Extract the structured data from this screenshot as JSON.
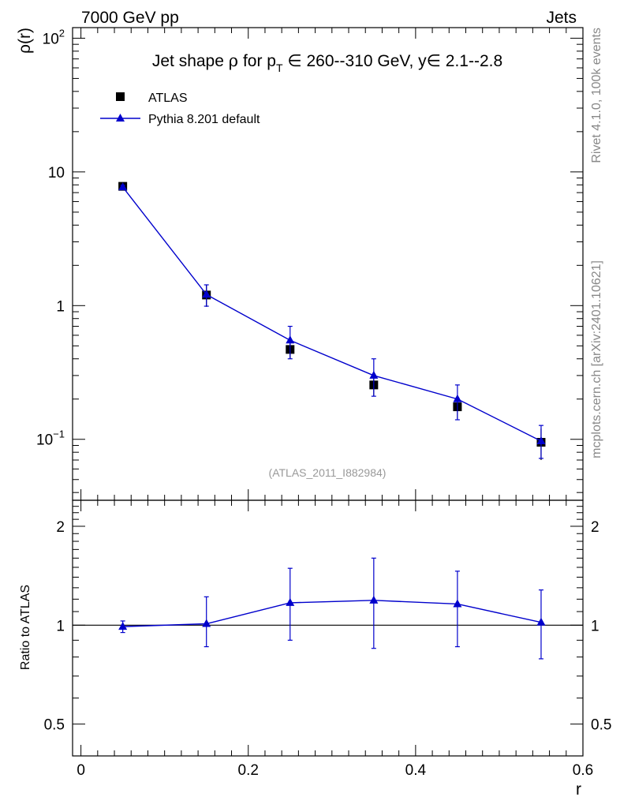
{
  "header": {
    "left_label": "7000 GeV pp",
    "right_label": "Jets"
  },
  "side_labels": {
    "rivet": "Rivet 4.1.0,  100k events",
    "mcplots": "mcplots.cern.ch [arXiv:2401.10621]"
  },
  "chart_data": [
    {
      "type": "scatter",
      "panel": "main",
      "title_parts": {
        "prefix": "Jet shape ",
        "rho": "ρ",
        "for": " for p",
        "sub": "T",
        "range": " ∈ 260--310 GeV, y∈ 2.1--2.8"
      },
      "title": "Jet shape ρ for p_T ∈ 260--310 GeV, y∈ 2.1--2.8",
      "xlabel": "r",
      "ylabel": "ρ(r)",
      "yscale": "log",
      "xlim": [
        -0.01,
        0.6
      ],
      "ylim": [
        0.035,
        120
      ],
      "ytick_labels": [
        {
          "value": 0.1,
          "base": "10",
          "exp": "−1"
        },
        {
          "value": 1,
          "base": "1",
          "exp": ""
        },
        {
          "value": 10,
          "base": "10",
          "exp": ""
        },
        {
          "value": 100,
          "base": "10",
          "exp": "2"
        }
      ],
      "watermark": "(ATLAS_2011_I882984)",
      "legend": [
        {
          "name": "ATLAS",
          "marker": "square",
          "color": "#000000"
        },
        {
          "name": "Pythia 8.201 default",
          "marker": "triangle",
          "color": "#0000cc"
        }
      ],
      "series": [
        {
          "name": "ATLAS",
          "color": "#000000",
          "x": [
            0.05,
            0.15,
            0.25,
            0.35,
            0.45,
            0.55
          ],
          "y": [
            7.8,
            1.2,
            0.47,
            0.255,
            0.175,
            0.095
          ],
          "yerr_low": [
            0.25,
            0.22,
            0.07,
            0.045,
            0.033,
            0.025
          ],
          "yerr_high": [
            0.25,
            0.22,
            0.07,
            0.045,
            0.033,
            0.025
          ]
        },
        {
          "name": "Pythia 8.201 default",
          "color": "#0000cc",
          "x": [
            0.05,
            0.15,
            0.25,
            0.35,
            0.45,
            0.55
          ],
          "y": [
            7.7,
            1.21,
            0.55,
            0.3,
            0.2,
            0.097
          ],
          "yerr_low": [
            0.25,
            0.22,
            0.15,
            0.09,
            0.06,
            0.025
          ],
          "yerr_high": [
            0.25,
            0.22,
            0.15,
            0.1,
            0.055,
            0.03
          ]
        }
      ]
    },
    {
      "type": "line",
      "panel": "ratio",
      "ylabel": "Ratio to ATLAS",
      "xlabel": "r",
      "yscale": "log",
      "xlim": [
        -0.01,
        0.6
      ],
      "ylim": [
        0.4,
        2.4
      ],
      "xtick_labels": [
        "0",
        "0.2",
        "0.4",
        "0.6"
      ],
      "xtick_values": [
        0,
        0.2,
        0.4,
        0.6
      ],
      "ytick_labels": [
        "0.5",
        "1",
        "2"
      ],
      "ytick_values": [
        0.5,
        1,
        2
      ],
      "reference_line": 1,
      "series": [
        {
          "name": "Pythia 8.201 default",
          "color": "#0000cc",
          "x": [
            0.05,
            0.15,
            0.25,
            0.35,
            0.45,
            0.55
          ],
          "y": [
            0.99,
            1.01,
            1.17,
            1.19,
            1.16,
            1.02
          ],
          "yerr_low": [
            0.04,
            0.15,
            0.27,
            0.34,
            0.3,
            0.23
          ],
          "yerr_high": [
            0.04,
            0.21,
            0.32,
            0.41,
            0.3,
            0.26
          ]
        }
      ]
    }
  ]
}
